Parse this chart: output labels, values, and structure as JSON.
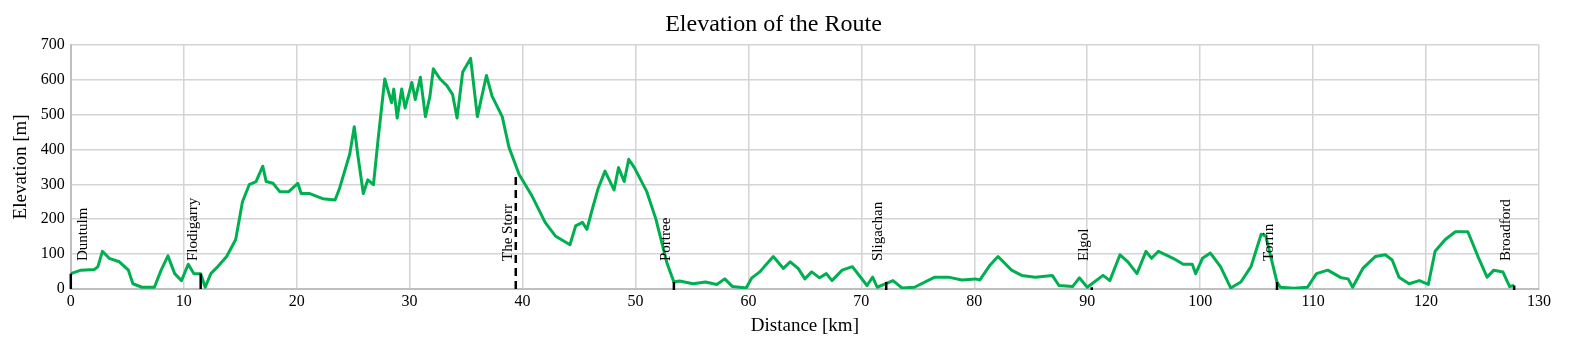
{
  "chart_data": {
    "type": "line",
    "title": "Elevation of the Route",
    "xlabel": "Distance [km]",
    "ylabel": "Elevation [m]",
    "xlim": [
      0,
      130
    ],
    "xticks": [
      0,
      10,
      20,
      30,
      40,
      50,
      60,
      70,
      80,
      90,
      100,
      110,
      120,
      130
    ],
    "ylim": [
      0,
      700
    ],
    "yticks": [
      0,
      100,
      200,
      300,
      400,
      500,
      600,
      700
    ],
    "grid": true,
    "legend": false,
    "marker": "none",
    "line_style": "solid",
    "series": [
      {
        "color": "#00b050",
        "x": [
          0,
          0.9,
          2.1,
          2.4,
          2.8,
          3.4,
          4.3,
          5.1,
          5.5,
          6.3,
          7.4,
          8.0,
          8.6,
          9.2,
          9.8,
          10.4,
          10.9,
          11.5,
          11.9,
          12.4,
          13.0,
          13.8,
          14.6,
          15.2,
          15.8,
          16.4,
          17.0,
          17.3,
          17.9,
          18.5,
          19.3,
          20.1,
          20.4,
          21.1,
          22.3,
          23.4,
          23.8,
          24.7,
          25.1,
          25.4,
          25.9,
          26.3,
          26.8,
          27.2,
          27.8,
          28.4,
          28.6,
          28.9,
          29.3,
          29.6,
          30.2,
          30.5,
          30.95,
          31.4,
          31.8,
          32.1,
          32.7,
          33.3,
          33.8,
          34.2,
          34.7,
          35.4,
          36.0,
          36.8,
          37.3,
          38.2,
          38.8,
          39.7,
          40.8,
          42.0,
          42.9,
          44.2,
          44.7,
          45.3,
          45.7,
          46.1,
          46.7,
          47.3,
          48.1,
          48.5,
          49.0,
          49.4,
          49.9,
          51.0,
          51.8,
          52.8,
          53.4,
          53.9,
          55.1,
          56.2,
          57.2,
          57.9,
          58.6,
          59.8,
          60.3,
          61.0,
          62.2,
          63.1,
          63.7,
          64.4,
          65.0,
          65.6,
          66.3,
          66.9,
          67.4,
          68.3,
          69.2,
          70.5,
          71.0,
          71.4,
          72.8,
          73.6,
          74.7,
          76.5,
          77.7,
          78.9,
          80.1,
          80.5,
          81.4,
          82.1,
          83.3,
          84.2,
          85.4,
          86.9,
          87.5,
          88.7,
          89.3,
          90.0,
          91.4,
          92.0,
          92.9,
          93.6,
          94.4,
          95.2,
          95.7,
          96.3,
          97.6,
          98.5,
          99.3,
          99.6,
          100.2,
          100.9,
          101.8,
          102.7,
          103.6,
          104.5,
          105.4,
          105.8,
          106.8,
          107.1,
          108.3,
          109.5,
          110.3,
          111.3,
          112.5,
          113.1,
          113.5,
          114.4,
          115.5,
          116.4,
          117.0,
          117.6,
          118.5,
          119.4,
          120.2,
          120.8,
          121.7,
          122.6,
          123.7,
          124.6,
          125.4,
          126.0,
          126.8,
          127.4,
          127.8
        ],
        "values": [
          44,
          54,
          56,
          64,
          108,
          88,
          78,
          54,
          15,
          5,
          5,
          54,
          95,
          44,
          24,
          71,
          44,
          44,
          5,
          44,
          64,
          93,
          142,
          250,
          299,
          308,
          352,
          308,
          303,
          279,
          279,
          303,
          274,
          274,
          259,
          255,
          289,
          387,
          465,
          387,
          274,
          313,
          299,
          426,
          602,
          534,
          573,
          490,
          573,
          519,
          592,
          543,
          607,
          494,
          553,
          631,
          602,
          583,
          558,
          490,
          622,
          661,
          494,
          612,
          553,
          494,
          406,
          328,
          269,
          191,
          152,
          127,
          181,
          191,
          171,
          220,
          289,
          338,
          284,
          348,
          308,
          372,
          348,
          279,
          201,
          73,
          20,
          23,
          15,
          20,
          13,
          29,
          7,
          3,
          32,
          49,
          93,
          59,
          78,
          59,
          29,
          49,
          32,
          44,
          24,
          54,
          64,
          10,
          34,
          5,
          24,
          3,
          5,
          34,
          34,
          26,
          29,
          26,
          69,
          93,
          54,
          39,
          34,
          39,
          10,
          7,
          32,
          5,
          39,
          24,
          98,
          78,
          44,
          108,
          88,
          108,
          88,
          71,
          71,
          44,
          88,
          103,
          64,
          3,
          20,
          64,
          157,
          152,
          20,
          5,
          2,
          5,
          44,
          54,
          32,
          29,
          5,
          59,
          93,
          98,
          83,
          34,
          15,
          24,
          13,
          108,
          142,
          164,
          164,
          93,
          34,
          54,
          49,
          7,
          10
        ]
      },
      {
        "type": "line",
        "name": "Duntulm",
        "color": "#000000",
        "line_style": "solid",
        "x": [
          0,
          0
        ],
        "values": [
          0,
          44
        ]
      },
      {
        "type": "line",
        "name": "Flodigarry",
        "color": "#000000",
        "line_style": "solid",
        "x": [
          11.5,
          11.5
        ],
        "values": [
          0,
          44
        ]
      },
      {
        "type": "line",
        "name": "The Storr",
        "color": "#000000",
        "line_style": "dashed",
        "x": [
          39.4,
          39.4
        ],
        "values": [
          0,
          328
        ]
      }
    ],
    "annotations": [
      {
        "text": "Portree",
        "x": 53.4,
        "y": 20
      },
      {
        "text": "Sligachan",
        "x": 72.2,
        "y": 20
      },
      {
        "text": "Elgol",
        "x": 90.4,
        "y": 5
      },
      {
        "text": "Torrin",
        "x": 106.8,
        "y": 20
      },
      {
        "text": "Broadford",
        "x": 127.8,
        "y": 10
      }
    ]
  }
}
